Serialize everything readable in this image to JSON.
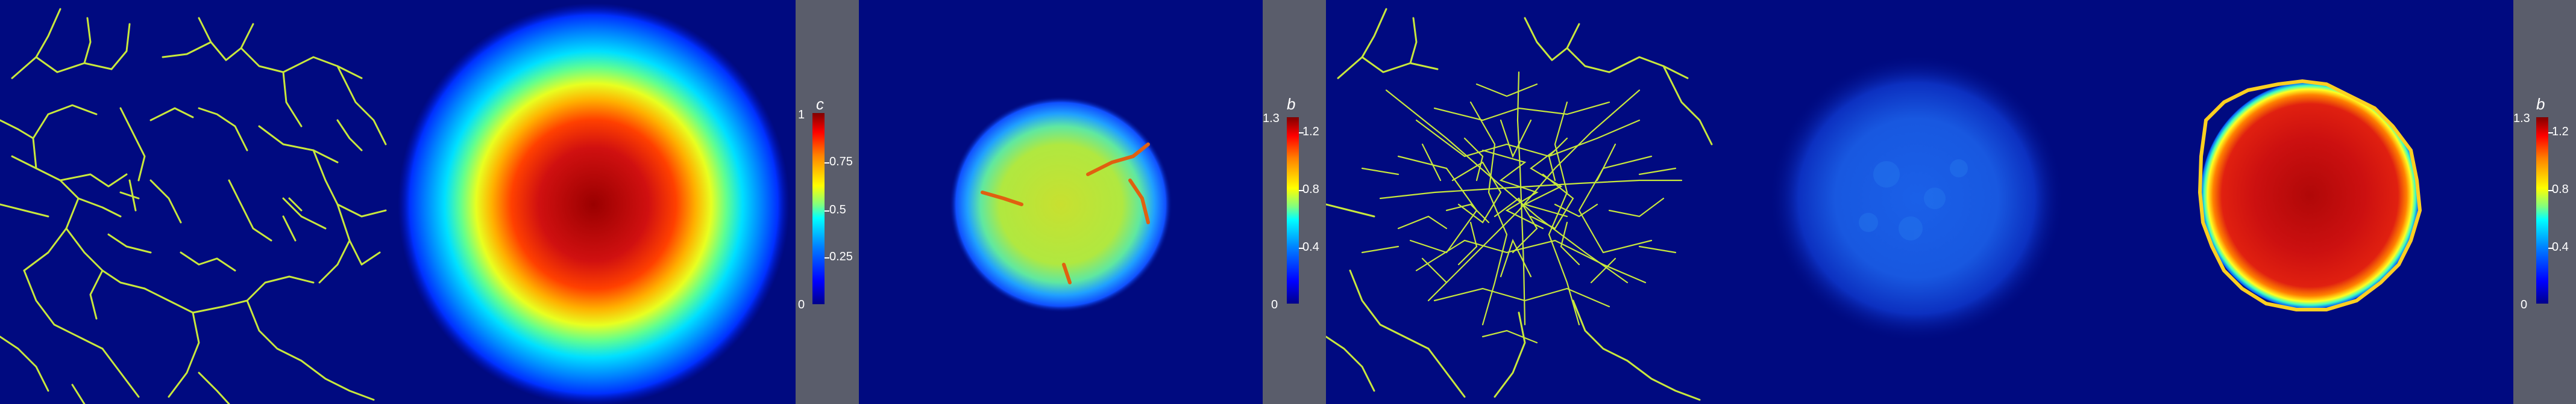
{
  "colorbars": {
    "c": {
      "title": "c",
      "ticks": [
        "1",
        "0.75",
        "0.5",
        "0.25",
        "0"
      ]
    },
    "b1": {
      "title": "b",
      "ticks": [
        "1.3",
        "1.2",
        "0.8",
        "0.4",
        "0"
      ]
    },
    "b2": {
      "title": "b",
      "ticks": [
        "1.3",
        "1.2",
        "0.8",
        "0.4",
        "0"
      ]
    }
  },
  "colors": {
    "background": "#000a80",
    "network": "#c8e83c",
    "colorbar_panel": "#5a5d6b"
  }
}
